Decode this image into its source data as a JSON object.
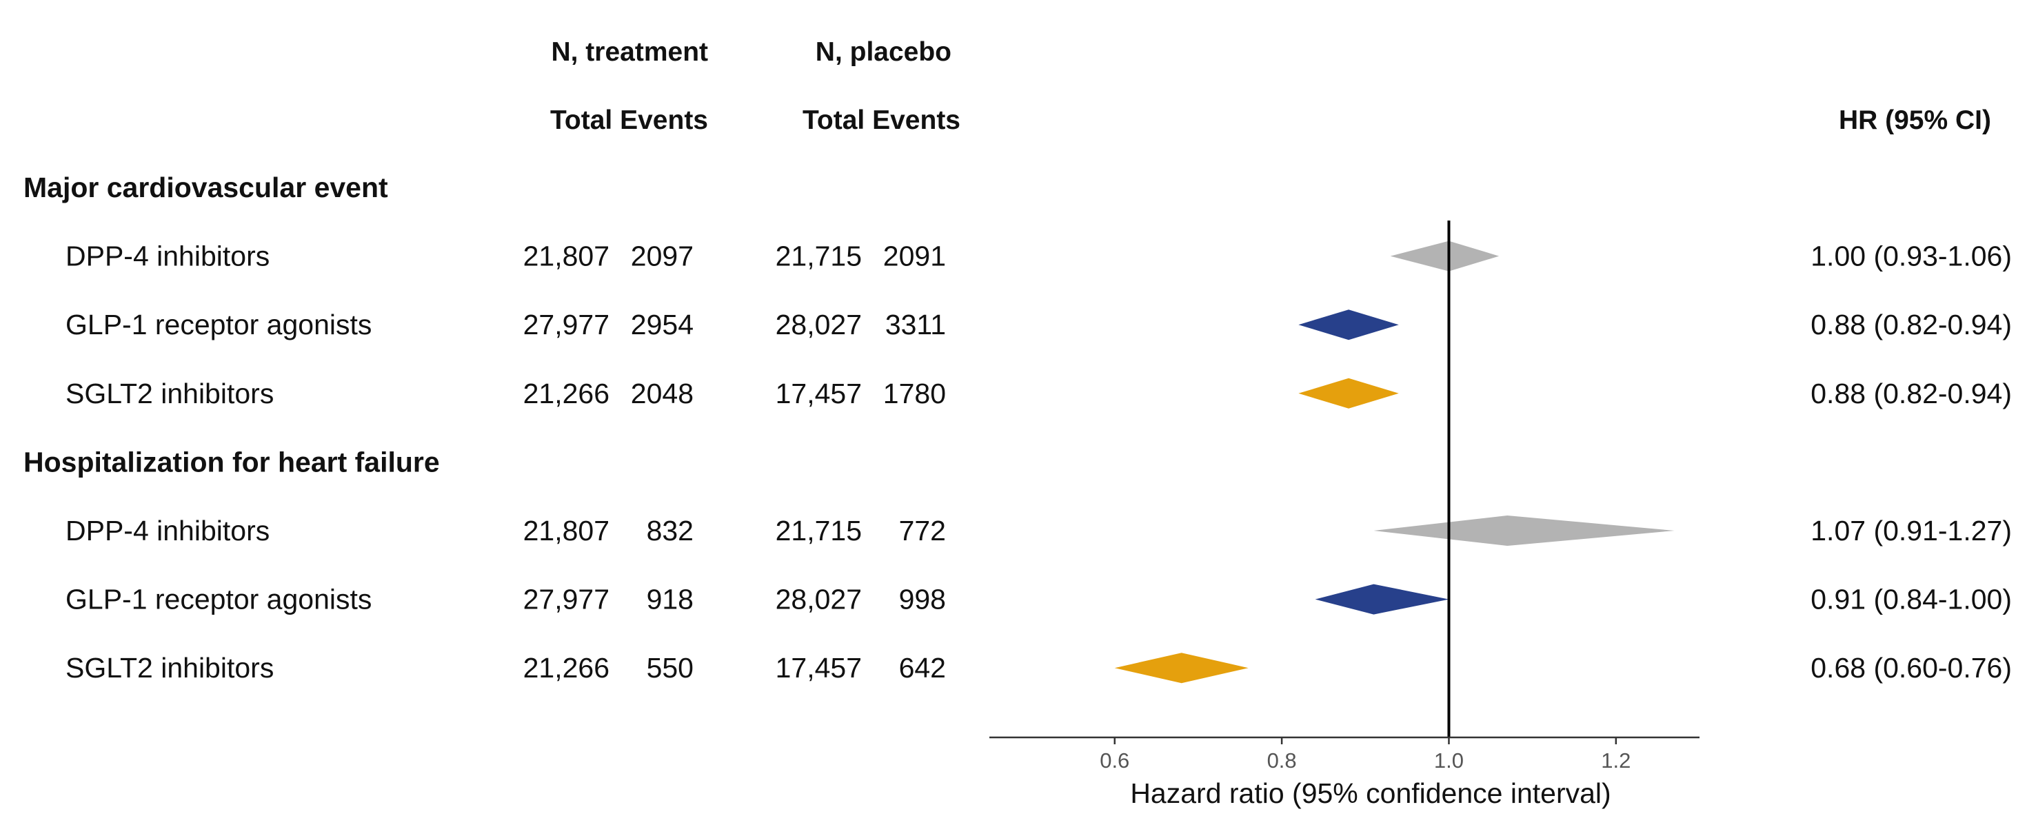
{
  "headers": {
    "n_treatment": "N, treatment",
    "n_placebo": "N, placebo",
    "total_events_treatment": "Total Events",
    "total_events_placebo": "Total Events",
    "hr_ci": "HR (95% CI)"
  },
  "chart_data": {
    "type": "forest",
    "title": "",
    "xlabel": "Hazard ratio (95% confidence interval)",
    "xlim": [
      0.45,
      1.3
    ],
    "x_ticks": [
      0.6,
      0.8,
      1.0,
      1.2
    ],
    "x_tick_labels": [
      "0.6",
      "0.8",
      "1.0",
      "1.2"
    ],
    "reference_line": 1.0,
    "colors": {
      "DPP-4 inhibitors": "#b3b3b3",
      "GLP-1 receptor agonists": "#27408b",
      "SGLT2 inhibitors": "#e5a00d"
    },
    "groups": [
      {
        "label": "Major cardiovascular event",
        "rows": [
          {
            "label": "DPP-4 inhibitors",
            "n_treatment": "21,807",
            "events_treatment": "2097",
            "n_placebo": "21,715",
            "events_placebo": "2091",
            "hr": 1.0,
            "lower": 0.93,
            "upper": 1.06,
            "hr_text": "1.00 (0.93-1.06)"
          },
          {
            "label": "GLP-1 receptor agonists",
            "n_treatment": "27,977",
            "events_treatment": "2954",
            "n_placebo": "28,027",
            "events_placebo": "3311",
            "hr": 0.88,
            "lower": 0.82,
            "upper": 0.94,
            "hr_text": "0.88 (0.82-0.94)"
          },
          {
            "label": "SGLT2 inhibitors",
            "n_treatment": "21,266",
            "events_treatment": "2048",
            "n_placebo": "17,457",
            "events_placebo": "1780",
            "hr": 0.88,
            "lower": 0.82,
            "upper": 0.94,
            "hr_text": "0.88 (0.82-0.94)"
          }
        ]
      },
      {
        "label": "Hospitalization for heart failure",
        "rows": [
          {
            "label": "DPP-4 inhibitors",
            "n_treatment": "21,807",
            "events_treatment": "832",
            "n_placebo": "21,715",
            "events_placebo": "772",
            "hr": 1.07,
            "lower": 0.91,
            "upper": 1.27,
            "hr_text": "1.07 (0.91-1.27)"
          },
          {
            "label": "GLP-1 receptor agonists",
            "n_treatment": "27,977",
            "events_treatment": "918",
            "n_placebo": "28,027",
            "events_placebo": "998",
            "hr": 0.91,
            "lower": 0.84,
            "upper": 1.0,
            "hr_text": "0.91 (0.84-1.00)"
          },
          {
            "label": "SGLT2 inhibitors",
            "n_treatment": "21,266",
            "events_treatment": "550",
            "n_placebo": "17,457",
            "events_placebo": "642",
            "hr": 0.68,
            "lower": 0.6,
            "upper": 0.76,
            "hr_text": "0.68 (0.60-0.76)"
          }
        ]
      }
    ]
  }
}
